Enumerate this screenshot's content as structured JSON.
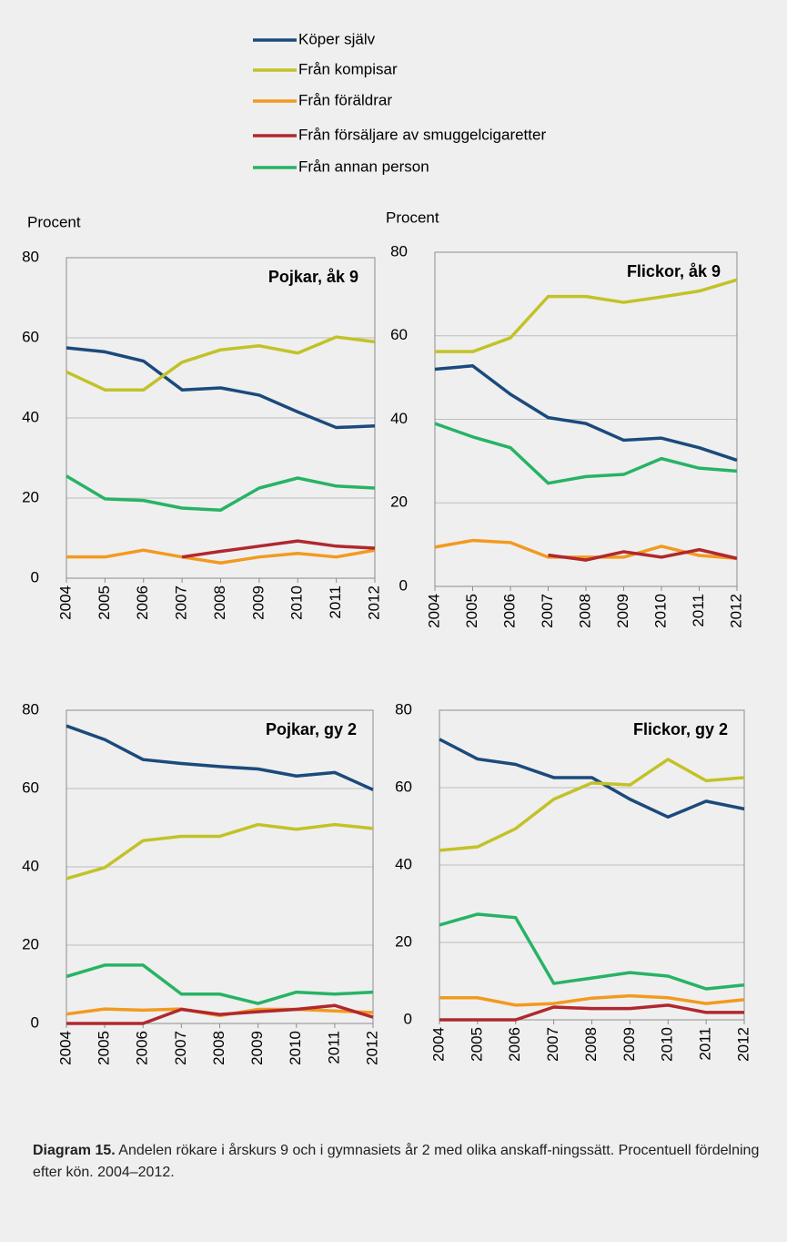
{
  "chart_data": [
    {
      "type": "line",
      "title": "Pojkar, åk 9",
      "ylabel": "Procent",
      "x": [
        2004,
        2005,
        2006,
        2007,
        2008,
        2009,
        2010,
        2011,
        2012
      ],
      "xlim": [
        2004,
        2012
      ],
      "ylim": [
        0,
        80
      ],
      "yticks": [
        0,
        20,
        40,
        60,
        80
      ],
      "grid": true,
      "series": [
        {
          "name": "Köper själv",
          "color": "#1b4a7c",
          "values": [
            57.5,
            56.5,
            54.2,
            47,
            47.5,
            45.7,
            41.5,
            37.6,
            38
          ]
        },
        {
          "name": "Från kompisar",
          "color": "#c2c228",
          "values": [
            51.5,
            47,
            47,
            53.9,
            57,
            58,
            56.2,
            60.2,
            59
          ]
        },
        {
          "name": "Från föräldrar",
          "color": "#f29a1f",
          "values": [
            5.3,
            5.3,
            7,
            5.3,
            3.8,
            5.3,
            6.2,
            5.3,
            7
          ]
        },
        {
          "name": "Från försäljare av smuggelcigaretter",
          "color": "#b0282e",
          "values": [
            null,
            null,
            null,
            5.3,
            6.7,
            8,
            9.3,
            8,
            7.5
          ]
        },
        {
          "name": "Från annan person",
          "color": "#27b365",
          "values": [
            25.5,
            19.8,
            19.4,
            17.5,
            17,
            22.5,
            25,
            23,
            22.5
          ]
        }
      ]
    },
    {
      "type": "line",
      "title": "Flickor, åk 9",
      "ylabel": "Procent",
      "x": [
        2004,
        2005,
        2006,
        2007,
        2008,
        2009,
        2010,
        2011,
        2012
      ],
      "xlim": [
        2004,
        2012
      ],
      "ylim": [
        0,
        80
      ],
      "yticks": [
        0,
        20,
        40,
        60,
        80
      ],
      "grid": true,
      "series": [
        {
          "name": "Köper själv",
          "color": "#1b4a7c",
          "values": [
            52,
            52.8,
            46,
            40.4,
            39,
            35,
            35.5,
            33.2,
            30.2
          ]
        },
        {
          "name": "Från kompisar",
          "color": "#c2c228",
          "values": [
            56.2,
            56.2,
            59.5,
            69.4,
            69.4,
            68,
            69.3,
            70.7,
            73.4
          ]
        },
        {
          "name": "Från föräldrar",
          "color": "#f29a1f",
          "values": [
            9.4,
            11,
            10.5,
            7,
            7,
            7,
            9.6,
            7.4,
            6.7
          ]
        },
        {
          "name": "Från försäljare av smuggelcigaretter",
          "color": "#b0282e",
          "values": [
            null,
            null,
            null,
            7.5,
            6.3,
            8.3,
            7,
            8.8,
            6.7
          ]
        },
        {
          "name": "Från annan person",
          "color": "#27b365",
          "values": [
            39,
            35.8,
            33.2,
            24.7,
            26.3,
            26.8,
            30.6,
            28.3,
            27.6
          ]
        }
      ]
    },
    {
      "type": "line",
      "title": "Pojkar, gy 2",
      "x": [
        2004,
        2005,
        2006,
        2007,
        2008,
        2009,
        2010,
        2011,
        2012
      ],
      "xlim": [
        2004,
        2012
      ],
      "ylim": [
        0,
        80
      ],
      "yticks": [
        0,
        20,
        40,
        60,
        80
      ],
      "grid": true,
      "series": [
        {
          "name": "Köper själv",
          "color": "#1b4a7c",
          "values": [
            76,
            72.5,
            67.4,
            66.4,
            65.6,
            65,
            63.2,
            64.1,
            59.7
          ]
        },
        {
          "name": "Från kompisar",
          "color": "#c2c228",
          "values": [
            37,
            39.8,
            46.7,
            47.8,
            47.8,
            50.8,
            49.6,
            50.8,
            49.8
          ]
        },
        {
          "name": "Från föräldrar",
          "color": "#f29a1f",
          "values": [
            2.4,
            3.7,
            3.4,
            3.7,
            2,
            3.6,
            3.6,
            3.2,
            2.8
          ]
        },
        {
          "name": "Från försäljare av smuggelcigaretter",
          "color": "#b0282e",
          "values": [
            0,
            0,
            0,
            3.6,
            2.3,
            3,
            3.6,
            4.6,
            1.6
          ]
        },
        {
          "name": "Från annan person",
          "color": "#27b365",
          "values": [
            12,
            14.9,
            14.9,
            7.5,
            7.5,
            5.1,
            8,
            7.5,
            8
          ]
        }
      ]
    },
    {
      "type": "line",
      "title": "Flickor, gy 2",
      "x": [
        2004,
        2005,
        2006,
        2007,
        2008,
        2009,
        2010,
        2011,
        2012
      ],
      "xlim": [
        2004,
        2012
      ],
      "ylim": [
        0,
        80
      ],
      "yticks": [
        0,
        20,
        40,
        60,
        80
      ],
      "grid": true,
      "series": [
        {
          "name": "Köper själv",
          "color": "#1b4a7c",
          "values": [
            72.5,
            67.4,
            66,
            62.6,
            62.6,
            57,
            52.4,
            56.5,
            54.5
          ]
        },
        {
          "name": "Från kompisar",
          "color": "#c2c228",
          "values": [
            43.8,
            44.7,
            49.4,
            57,
            61.2,
            60.7,
            67.3,
            61.8,
            62.6
          ]
        },
        {
          "name": "Från föräldrar",
          "color": "#f29a1f",
          "values": [
            5.7,
            5.7,
            3.8,
            4.2,
            5.6,
            6.2,
            5.7,
            4.2,
            5.2
          ]
        },
        {
          "name": "Från försäljare av smuggelcigaretter",
          "color": "#b0282e",
          "values": [
            0,
            0,
            0,
            3.3,
            2.9,
            2.9,
            3.8,
            1.9,
            1.9
          ]
        },
        {
          "name": "Från annan person",
          "color": "#27b365",
          "values": [
            24.5,
            27.3,
            26.4,
            9.4,
            10.8,
            12.2,
            11.3,
            8,
            9
          ]
        }
      ]
    }
  ],
  "caption": {
    "label": "Diagram 15.",
    "text": "Andelen rökare i årskurs 9 och i gymnasiets år 2 med olika anskaff-ningssätt. Procentuell fördelning efter kön. 2004–2012."
  }
}
